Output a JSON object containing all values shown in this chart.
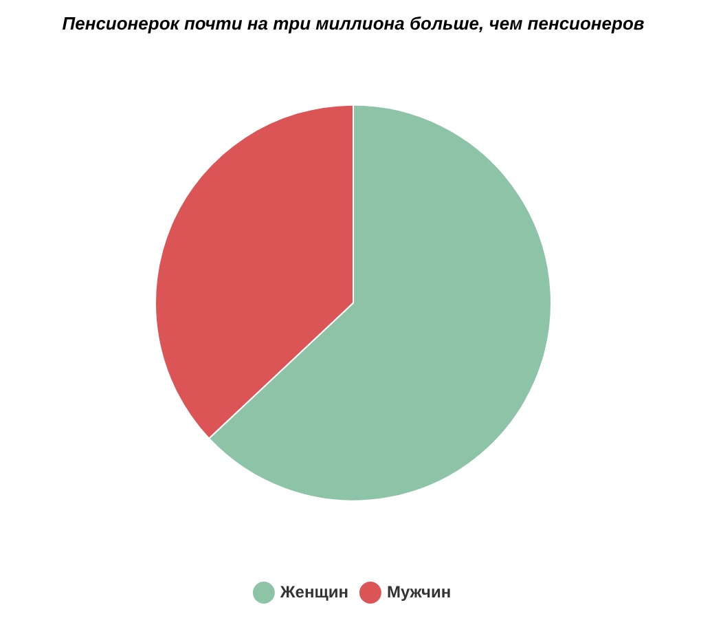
{
  "chart_data": {
    "type": "pie",
    "title": "Пенсионерок почти на три миллиона больше, чем пенсионеров",
    "categories": [
      "Женщин",
      "Мужчин"
    ],
    "values": [
      63,
      37
    ],
    "colors": [
      "#8dc3a7",
      "#db5456"
    ],
    "legend": "bottom"
  }
}
